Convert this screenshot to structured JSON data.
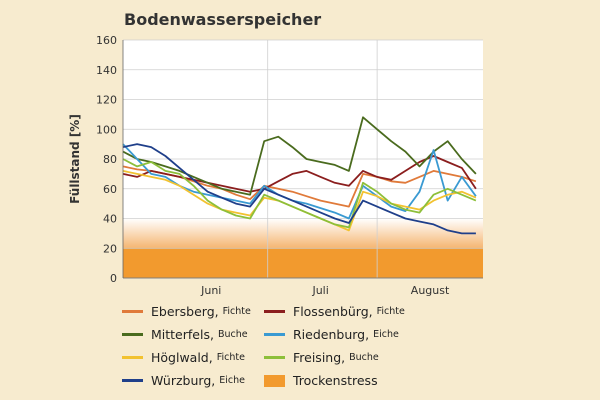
{
  "chart_data": {
    "type": "line",
    "title": "Bodenwasserspeicher",
    "ylabel": "Füllstand [%]",
    "xlabel": "",
    "ylim": [
      0,
      160
    ],
    "y_ticks": [
      0,
      20,
      40,
      60,
      80,
      100,
      120,
      140,
      160
    ],
    "x_range": [
      "2019-05-21",
      "2019-08-31"
    ],
    "month_labels": [
      {
        "label": "Juni",
        "center": "2019-06-15"
      },
      {
        "label": "Juli",
        "center": "2019-07-16"
      },
      {
        "label": "August",
        "center": "2019-08-16"
      }
    ],
    "month_boundaries": [
      "2019-07-01",
      "2019-08-01"
    ],
    "dates": [
      "2019-05-21",
      "2019-05-25",
      "2019-05-29",
      "2019-06-02",
      "2019-06-06",
      "2019-06-10",
      "2019-06-14",
      "2019-06-18",
      "2019-06-22",
      "2019-06-26",
      "2019-06-30",
      "2019-07-04",
      "2019-07-08",
      "2019-07-12",
      "2019-07-16",
      "2019-07-20",
      "2019-07-24",
      "2019-07-28",
      "2019-08-01",
      "2019-08-05",
      "2019-08-09",
      "2019-08-13",
      "2019-08-17",
      "2019-08-21",
      "2019-08-25",
      "2019-08-29"
    ],
    "trockenstress": {
      "label": "Trockenstress",
      "range": [
        0,
        40
      ],
      "color": "#f29a2e"
    },
    "series": [
      {
        "name": "Ebersberg",
        "species": "Fichte",
        "color": "#e07a3a",
        "values": [
          75,
          73,
          72,
          70,
          68,
          65,
          62,
          60,
          56,
          53,
          62,
          60,
          58,
          55,
          52,
          50,
          48,
          70,
          68,
          65,
          64,
          68,
          72,
          70,
          68,
          65
        ]
      },
      {
        "name": "Flossenbürg",
        "species": "Fichte",
        "color": "#8b1e1e",
        "values": [
          70,
          68,
          72,
          70,
          68,
          66,
          64,
          62,
          60,
          58,
          60,
          65,
          70,
          72,
          68,
          64,
          62,
          72,
          68,
          66,
          72,
          78,
          82,
          78,
          74,
          60
        ]
      },
      {
        "name": "Mitterfels",
        "species": "Buche",
        "color": "#4a6b1e",
        "values": [
          85,
          80,
          78,
          75,
          72,
          68,
          64,
          60,
          58,
          56,
          92,
          95,
          88,
          80,
          78,
          76,
          72,
          108,
          100,
          92,
          85,
          75,
          85,
          92,
          80,
          70
        ]
      },
      {
        "name": "Riedenburg",
        "species": "Eiche",
        "color": "#3a9ad2",
        "values": [
          90,
          80,
          70,
          68,
          62,
          58,
          56,
          54,
          52,
          50,
          62,
          56,
          52,
          50,
          47,
          44,
          40,
          62,
          55,
          48,
          45,
          58,
          86,
          52,
          68,
          55
        ]
      },
      {
        "name": "Höglwald",
        "species": "Fichte",
        "color": "#f2c230",
        "values": [
          72,
          70,
          68,
          66,
          62,
          56,
          50,
          46,
          44,
          42,
          54,
          52,
          48,
          44,
          40,
          36,
          32,
          58,
          55,
          50,
          48,
          46,
          52,
          56,
          58,
          54
        ]
      },
      {
        "name": "Freising",
        "species": "Buche",
        "color": "#8dbf3a",
        "values": [
          80,
          75,
          78,
          72,
          70,
          62,
          52,
          46,
          42,
          40,
          56,
          52,
          48,
          44,
          40,
          36,
          34,
          64,
          58,
          50,
          46,
          44,
          56,
          60,
          56,
          52
        ]
      },
      {
        "name": "Würzburg",
        "species": "Eiche",
        "color": "#1f3f8a",
        "values": [
          88,
          90,
          88,
          82,
          74,
          66,
          58,
          54,
          50,
          48,
          60,
          56,
          52,
          48,
          44,
          40,
          37,
          52,
          48,
          44,
          40,
          38,
          36,
          32,
          30,
          30
        ]
      }
    ]
  }
}
